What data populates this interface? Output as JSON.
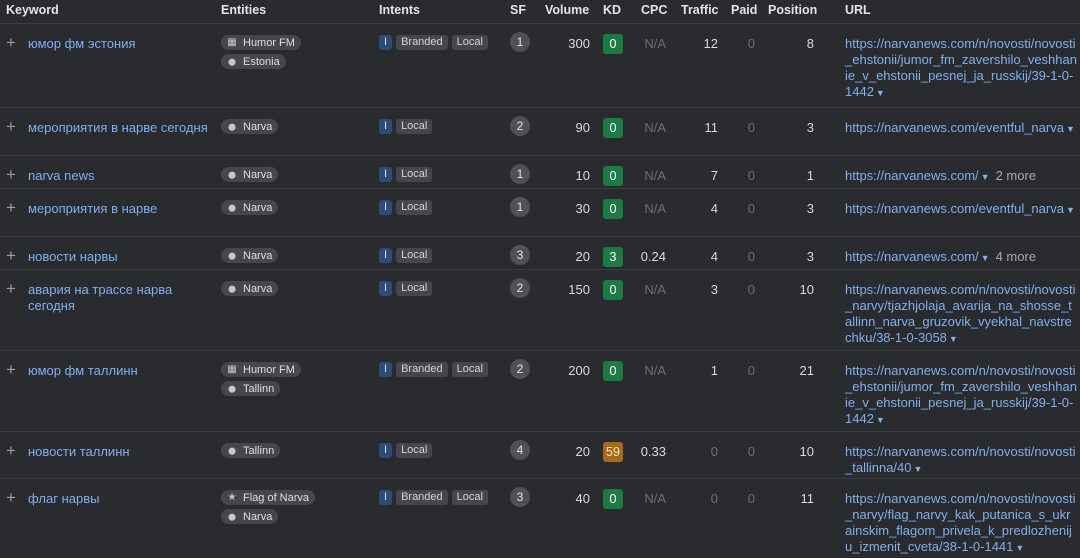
{
  "headers": {
    "keyword": "Keyword",
    "entities": "Entities",
    "intents": "Intents",
    "sf": "SF",
    "volume": "Volume",
    "kd": "KD",
    "cpc": "CPC",
    "traffic": "Traffic",
    "paid": "Paid",
    "position": "Position",
    "url": "URL"
  },
  "rows": [
    {
      "keyword": "юмор фм эстония",
      "entities": [
        {
          "icon": "building-icon",
          "label": "Humor FM"
        },
        {
          "icon": "location-pin-icon",
          "label": "Estonia"
        }
      ],
      "intents": [
        "I"
      ],
      "intent_chips": [
        "Branded",
        "Local"
      ],
      "sf": "1",
      "volume": "300",
      "kd": "0",
      "kd_level": "easy",
      "cpc": "N/A",
      "traffic": "12",
      "paid": "0",
      "position": "8",
      "url": "https://narvanews.com/n/novosti/novosti_ehstonii/jumor_fm_zavershilo_veshhanie_v_ehstonii_pesnej_ja_russkij/39-1-0-1442",
      "more": ""
    },
    {
      "keyword": "мероприятия в нарве сегодня",
      "entities": [
        {
          "icon": "location-pin-icon",
          "label": "Narva"
        }
      ],
      "intents": [
        "I"
      ],
      "intent_chips": [
        "Local"
      ],
      "sf": "2",
      "volume": "90",
      "kd": "0",
      "kd_level": "easy",
      "cpc": "N/A",
      "traffic": "11",
      "paid": "0",
      "position": "3",
      "url": "https://narvanews.com/eventful_narva",
      "more": ""
    },
    {
      "keyword": "narva news",
      "entities": [
        {
          "icon": "location-pin-icon",
          "label": "Narva"
        }
      ],
      "intents": [
        "I"
      ],
      "intent_chips": [
        "Local"
      ],
      "sf": "1",
      "volume": "10",
      "kd": "0",
      "kd_level": "easy",
      "cpc": "N/A",
      "traffic": "7",
      "paid": "0",
      "position": "1",
      "url": "https://narvanews.com/",
      "more": "2 more"
    },
    {
      "keyword": "мероприятия в нарве",
      "entities": [
        {
          "icon": "location-pin-icon",
          "label": "Narva"
        }
      ],
      "intents": [
        "I"
      ],
      "intent_chips": [
        "Local"
      ],
      "sf": "1",
      "volume": "30",
      "kd": "0",
      "kd_level": "easy",
      "cpc": "N/A",
      "traffic": "4",
      "paid": "0",
      "position": "3",
      "url": "https://narvanews.com/eventful_narva",
      "more": ""
    },
    {
      "keyword": "новости нарвы",
      "entities": [
        {
          "icon": "location-pin-icon",
          "label": "Narva"
        }
      ],
      "intents": [
        "I"
      ],
      "intent_chips": [
        "Local"
      ],
      "sf": "3",
      "volume": "20",
      "kd": "3",
      "kd_level": "easy",
      "cpc": "0.24",
      "traffic": "4",
      "paid": "0",
      "position": "3",
      "url": "https://narvanews.com/",
      "more": "4 more"
    },
    {
      "keyword": "авария на трассе нарва сегодня",
      "entities": [
        {
          "icon": "location-pin-icon",
          "label": "Narva"
        }
      ],
      "intents": [
        "I"
      ],
      "intent_chips": [
        "Local"
      ],
      "sf": "2",
      "volume": "150",
      "kd": "0",
      "kd_level": "easy",
      "cpc": "N/A",
      "traffic": "3",
      "paid": "0",
      "position": "10",
      "url": "https://narvanews.com/n/novosti/novosti_narvy/tjazhjolaja_avarija_na_shosse_tallinn_narva_gruzovik_vyekhal_navstrechku/38-1-0-3058",
      "more": ""
    },
    {
      "keyword": "юмор фм таллинн",
      "entities": [
        {
          "icon": "building-icon",
          "label": "Humor FM"
        },
        {
          "icon": "location-pin-icon",
          "label": "Tallinn"
        }
      ],
      "intents": [
        "I"
      ],
      "intent_chips": [
        "Branded",
        "Local"
      ],
      "sf": "2",
      "volume": "200",
      "kd": "0",
      "kd_level": "easy",
      "cpc": "N/A",
      "traffic": "1",
      "paid": "0",
      "position": "21",
      "url": "https://narvanews.com/n/novosti/novosti_ehstonii/jumor_fm_zavershilo_veshhanie_v_ehstonii_pesnej_ja_russkij/39-1-0-1442",
      "more": ""
    },
    {
      "keyword": "новости таллинн",
      "entities": [
        {
          "icon": "location-pin-icon",
          "label": "Tallinn"
        }
      ],
      "intents": [
        "I"
      ],
      "intent_chips": [
        "Local"
      ],
      "sf": "4",
      "volume": "20",
      "kd": "59",
      "kd_level": "difficult",
      "cpc": "0.33",
      "traffic": "0",
      "paid": "0",
      "position": "10",
      "url": "https://narvanews.com/n/novosti/novosti_tallinna/40",
      "more": ""
    },
    {
      "keyword": "флаг нарвы",
      "entities": [
        {
          "icon": "star-icon",
          "label": "Flag of Narva"
        },
        {
          "icon": "location-pin-icon",
          "label": "Narva"
        }
      ],
      "intents": [
        "I"
      ],
      "intent_chips": [
        "Branded",
        "Local"
      ],
      "sf": "3",
      "volume": "40",
      "kd": "0",
      "kd_level": "easy",
      "cpc": "N/A",
      "traffic": "0",
      "paid": "0",
      "position": "11",
      "url": "https://narvanews.com/n/novosti/novosti_narvy/flag_narvy_kak_putanica_s_ukrainskim_flagom_privela_k_predlozheniju_izmenit_cveta/38-1-0-1441",
      "more": ""
    }
  ]
}
